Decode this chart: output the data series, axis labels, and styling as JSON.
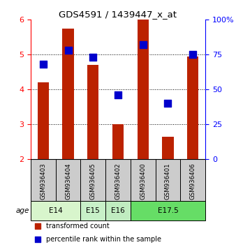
{
  "title": "GDS4591 / 1439447_x_at",
  "samples": [
    "GSM936403",
    "GSM936404",
    "GSM936405",
    "GSM936402",
    "GSM936400",
    "GSM936401",
    "GSM936406"
  ],
  "transformed_counts": [
    4.2,
    5.75,
    4.7,
    3.0,
    6.0,
    2.65,
    4.95
  ],
  "percentile_ranks": [
    68,
    78,
    73,
    46,
    82,
    40,
    75
  ],
  "age_groups": [
    {
      "label": "E14",
      "samples": [
        0,
        1
      ],
      "color": "#d8f5cc"
    },
    {
      "label": "E15",
      "samples": [
        2
      ],
      "color": "#c8f0c8"
    },
    {
      "label": "E16",
      "samples": [
        3
      ],
      "color": "#c0ecc0"
    },
    {
      "label": "E17.5",
      "samples": [
        4,
        5,
        6
      ],
      "color": "#66dd66"
    }
  ],
  "ylim_left": [
    2,
    6
  ],
  "ylim_right": [
    0,
    100
  ],
  "yticks_left": [
    2,
    3,
    4,
    5,
    6
  ],
  "yticks_right": [
    0,
    25,
    50,
    75,
    100
  ],
  "ytick_labels_right": [
    "0",
    "25",
    "50",
    "75",
    "100%"
  ],
  "bar_color": "#bb2200",
  "dot_color": "#0000cc",
  "bar_width": 0.45,
  "dot_size": 45,
  "sample_box_color": "#cccccc",
  "legend_items": [
    {
      "color": "#bb2200",
      "label": "transformed count"
    },
    {
      "color": "#0000cc",
      "label": "percentile rank within the sample"
    }
  ]
}
